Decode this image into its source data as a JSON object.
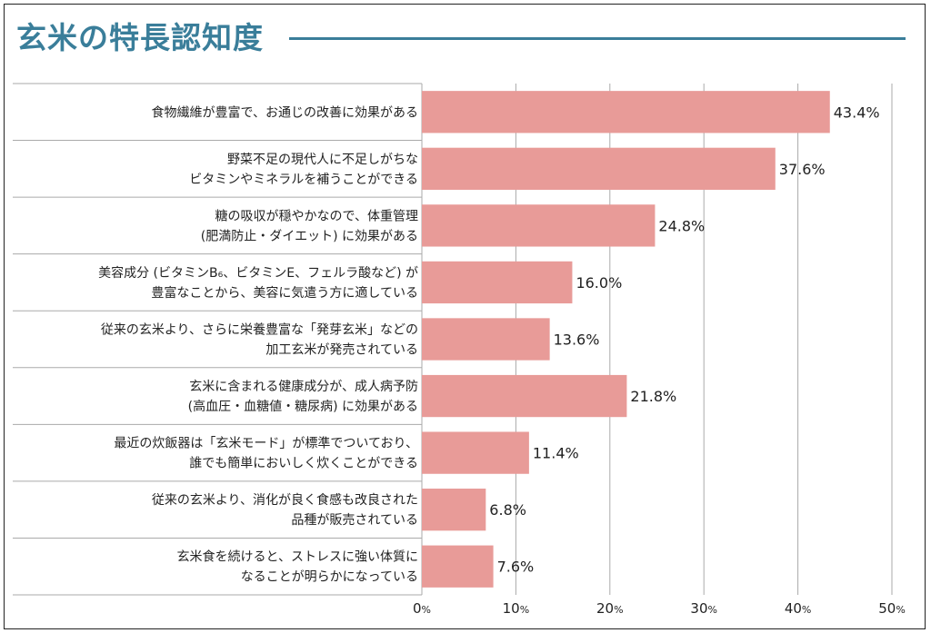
{
  "page": {
    "title": "玄米の特長認知度",
    "accent_color": "#3a7e9a"
  },
  "chart_data": {
    "type": "bar",
    "orientation": "horizontal",
    "title": "玄米の特長認知度",
    "categories": [
      [
        "食物繊維が豊富で、お通じの改善に効果がある"
      ],
      [
        "野菜不足の現代人に不足しがちな",
        "ビタミンやミネラルを補うことができる"
      ],
      [
        "糖の吸収が穏やかなので、体重管理",
        "(肥満防止・ダイエット) に効果がある"
      ],
      [
        "美容成分 (ビタミンB₆、ビタミンE、フェルラ酸など) が",
        "豊富なことから、美容に気遣う方に適している"
      ],
      [
        "従来の玄米より、さらに栄養豊富な「発芽玄米」などの",
        "加工玄米が発売されている"
      ],
      [
        "玄米に含まれる健康成分が、成人病予防",
        "(高血圧・血糖値・糖尿病) に効果がある"
      ],
      [
        "最近の炊飯器は「玄米モード」が標準でついており、",
        "誰でも簡単においしく炊くことができる"
      ],
      [
        "従来の玄米より、消化が良く食感も改良された",
        "品種が販売されている"
      ],
      [
        "玄米食を続けると、ストレスに強い体質に",
        "なることが明らかになっている"
      ]
    ],
    "values": [
      43.4,
      37.6,
      24.8,
      16.0,
      13.6,
      21.8,
      11.4,
      6.8,
      7.6
    ],
    "value_labels": [
      "43.4%",
      "37.6%",
      "24.8%",
      "16.0%",
      "13.6%",
      "21.8%",
      "11.4%",
      "6.8%",
      "7.6%"
    ],
    "xlim": [
      0,
      50
    ],
    "xticks": [
      0,
      10,
      20,
      30,
      40,
      50
    ],
    "xtick_unit": "%",
    "grid": true,
    "bar_color": "#e89b98",
    "grid_color": "#aaaaaa",
    "text_color": "#222222"
  }
}
